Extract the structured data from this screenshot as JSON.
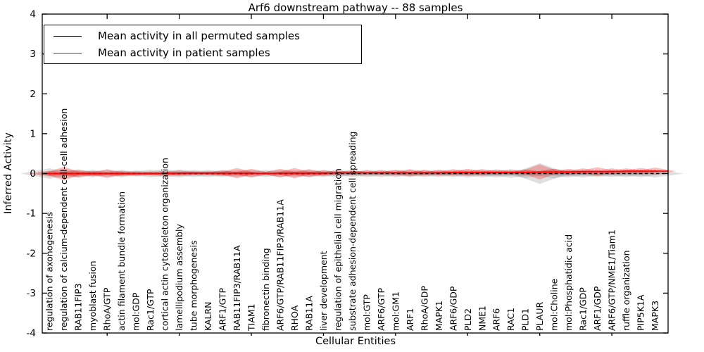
{
  "chart_data": {
    "type": "violin",
    "title": "Arf6 downstream pathway -- 88 samples",
    "xlabel": "Cellular Entities",
    "ylabel": "Inferred Activity",
    "ylim": [
      -4,
      4
    ],
    "yticks": [
      4,
      3,
      2,
      1,
      0,
      -1,
      -2,
      -3,
      -4
    ],
    "grid": false,
    "legend_position": "upper left",
    "legend": [
      {
        "label": "Mean activity in all permuted samples",
        "color": "#000000",
        "style": "solid"
      },
      {
        "label": "Mean activity in patient samples",
        "color": "#ff0000",
        "style": "solid"
      }
    ],
    "colors": {
      "patient_line": "#ff0000",
      "permuted_line": "#000000",
      "patient_fill": "rgba(255,0,0,0.25)",
      "permuted_fill": "rgba(110,110,110,0.22)",
      "axes": "#000000",
      "background": "#ffffff"
    },
    "categories": [
      "regulation of axonogenesis",
      "regulation of calcium-dependent cell-cell adhesion",
      "RAB11FIP3",
      "myoblast fusion",
      "RhoA/GTP",
      "actin filament bundle formation",
      "mol:GDP",
      "Rac1/GTP",
      "cortical actin cytoskeleton organization",
      "lamellipodium assembly",
      "tube morphogenesis",
      "KALRN",
      "ARF1/GTP",
      "RAB11FIP3/RAB11A",
      "TIAM1",
      "fibronectin binding",
      "ARF6/GTP/RAB11FIP3/RAB11A",
      "RHOA",
      "RAB11A",
      "liver development",
      "regulation of epithelial cell migration",
      "substrate adhesion-dependent cell spreading",
      "mol:GTP",
      "ARF6/GTP",
      "mol:GM1",
      "ARF1",
      "RhoA/GDP",
      "MAPK1",
      "ARF6/GDP",
      "PLD2",
      "NME1",
      "ARF6",
      "RAC1",
      "PLD1",
      "PLAUR",
      "mol:Choline",
      "mol:Phosphatidic acid",
      "Rac1/GDP",
      "ARF1/GDP",
      "ARF6/GTP/NME1/Tiam1",
      "ruffle organization",
      "PIP5K1A",
      "MAPK3"
    ],
    "series": [
      {
        "name": "Mean activity in all permuted samples",
        "values": [
          0,
          0,
          0,
          0,
          0,
          0,
          0,
          0,
          0,
          0,
          0,
          0,
          0,
          0,
          0,
          0,
          0,
          0,
          0,
          0,
          0,
          0,
          0,
          0,
          0,
          0,
          0,
          0,
          0,
          0,
          0,
          0,
          0,
          0,
          0,
          0,
          0,
          0,
          0,
          0,
          0,
          0,
          0
        ]
      },
      {
        "name": "Mean activity in patient samples",
        "values": [
          0,
          0,
          0,
          0,
          0,
          0,
          0,
          0,
          0,
          0.01,
          0.01,
          0.01,
          0.01,
          0.01,
          0.01,
          0,
          0.01,
          0.01,
          0.01,
          0.01,
          0.02,
          0.02,
          0.02,
          0.02,
          0.02,
          0.02,
          0.02,
          0.02,
          0.03,
          0.03,
          0.03,
          0.03,
          0.03,
          0.03,
          0.04,
          0.04,
          0.04,
          0.05,
          0.05,
          0.05,
          0.06,
          0.06,
          0.06
        ]
      }
    ],
    "patient_spread_halfwidth": [
      0.07,
      0.17,
      0.1,
      0.07,
      0.11,
      0.07,
      0.05,
      0.05,
      0.06,
      0.07,
      0.05,
      0.05,
      0.07,
      0.13,
      0.11,
      0.02,
      0.11,
      0.13,
      0.1,
      0.07,
      0.06,
      0.06,
      0.06,
      0.06,
      0.07,
      0.09,
      0.07,
      0.07,
      0.08,
      0.09,
      0.08,
      0.07,
      0.06,
      0.07,
      0.19,
      0.08,
      0.08,
      0.08,
      0.11,
      0.08,
      0.07,
      0.08,
      0.09
    ],
    "permuted_spread_halfwidth": [
      0.13,
      0.12,
      0.1,
      0.09,
      0.09,
      0.09,
      0.08,
      0.1,
      0.1,
      0.1,
      0.09,
      0.09,
      0.09,
      0.09,
      0.09,
      0.09,
      0.09,
      0.09,
      0.09,
      0.09,
      0.09,
      0.09,
      0.09,
      0.09,
      0.09,
      0.09,
      0.09,
      0.09,
      0.09,
      0.1,
      0.1,
      0.1,
      0.11,
      0.11,
      0.26,
      0.12,
      0.1,
      0.1,
      0.09,
      0.09,
      0.09,
      0.09,
      0.1
    ]
  }
}
